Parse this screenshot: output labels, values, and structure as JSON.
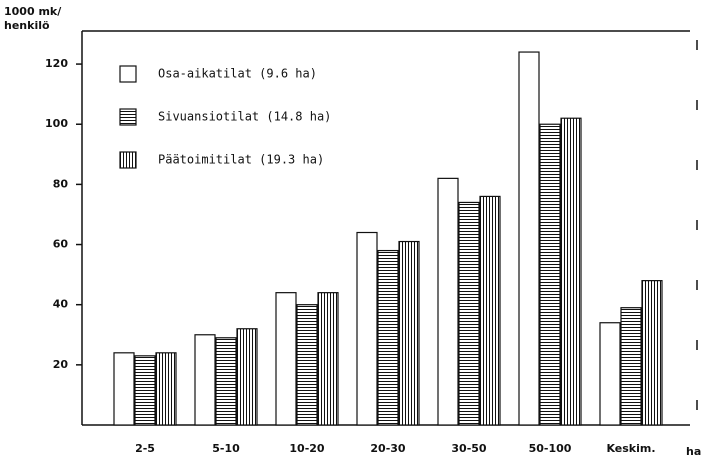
{
  "chart_data": {
    "type": "bar",
    "y_label": "1000 mk/",
    "y_label_2": "henkilö",
    "x_label": "ha",
    "categories": [
      "2-5",
      "5-10",
      "10-20",
      "20-30",
      "30-50",
      "50-100",
      "Keskim."
    ],
    "series": [
      {
        "name": "Osa-aikatilat (9.6 ha)",
        "color": "#ffffff",
        "pattern": "none",
        "values": [
          24,
          30,
          44,
          64,
          82,
          124,
          34
        ]
      },
      {
        "name": "Sivuansiotilat (14.8 ha)",
        "color": "#ffffff",
        "pattern": "horizontal",
        "values": [
          23,
          29,
          40,
          58,
          74,
          100,
          39
        ]
      },
      {
        "name": "Päätoimitilat (19.3 ha)",
        "color": "#ffffff",
        "pattern": "vertical",
        "values": [
          24,
          32,
          44,
          61,
          76,
          102,
          48
        ]
      }
    ],
    "ylim": [
      0,
      130
    ],
    "yticks": [
      20,
      40,
      60,
      80,
      100,
      120
    ],
    "grid": false
  }
}
